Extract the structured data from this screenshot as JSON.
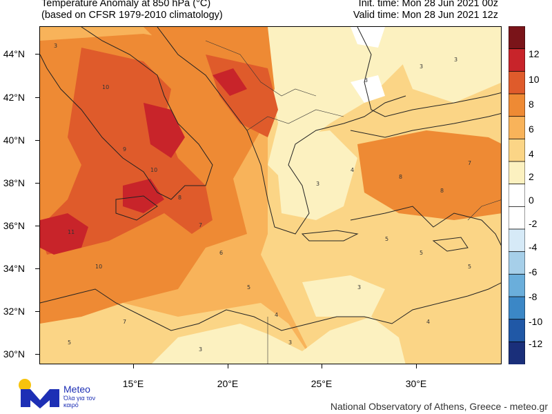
{
  "header": {
    "title_line1": "Temperature Anomaly at 850 hPa (°C)",
    "title_line2": "(based on CFSR 1979-2010 climatology)",
    "init_time": "Init. time: Mon 28 Jun 2021 00z",
    "valid_time": "Valid time: Mon 28 Jun 2021 12z"
  },
  "map": {
    "lat_labels": [
      "44°N",
      "42°N",
      "40°N",
      "38°N",
      "36°N",
      "34°N",
      "32°N",
      "30°N"
    ],
    "lon_labels": [
      "15°E",
      "20°E",
      "25°E",
      "30°E"
    ],
    "colors": {
      "c2_4": "#fcf1c0",
      "c4_6": "#fbd586",
      "c6_8": "#f8b35a",
      "c8_10": "#ee8a34",
      "c10_12": "#df5b2b",
      "c12_14": "#c8242a"
    }
  },
  "colorbar": {
    "labels": [
      "12",
      "10",
      "8",
      "6",
      "4",
      "2",
      "0",
      "-2",
      "-4",
      "-6",
      "-8",
      "-10",
      "-12"
    ],
    "colors": [
      "#7a1419",
      "#c8242a",
      "#df5b2b",
      "#ee8a34",
      "#f8b35a",
      "#fbd586",
      "#fcf1c0",
      "#ffffff",
      "#ffffff",
      "#d6eaf7",
      "#a6cfe9",
      "#6aaedb",
      "#3b87c6",
      "#2058a6",
      "#1a2f7a"
    ]
  },
  "branding": {
    "logo_name": "Meteo",
    "logo_tagline": "Όλα για τον καιρό",
    "credit": "National Observatory of Athens, Greece - meteo.gr"
  }
}
